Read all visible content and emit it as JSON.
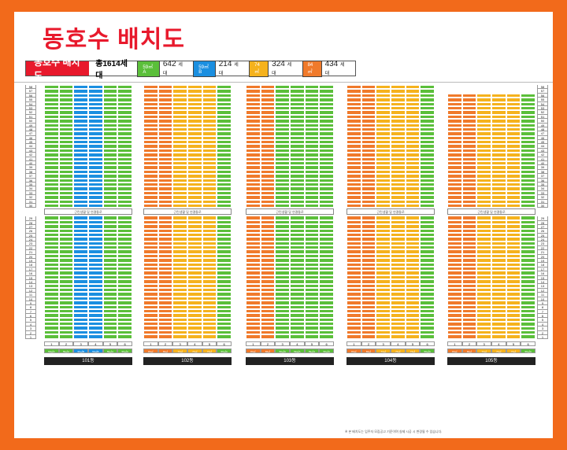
{
  "page": {
    "title": "동호수 배치도"
  },
  "legend": {
    "label": "동호수 배치도",
    "total": "총1614세대",
    "types": [
      {
        "name": "59㎡A",
        "count": "642",
        "unit": "세대",
        "color": "#5bbf3a"
      },
      {
        "name": "59㎡B",
        "count": "214",
        "unit": "세대",
        "color": "#1b8fe0"
      },
      {
        "name": "74㎡",
        "count": "324",
        "unit": "세대",
        "color": "#f5b21d"
      },
      {
        "name": "84㎡",
        "count": "434",
        "unit": "세대",
        "color": "#f07a2b"
      }
    ]
  },
  "buildings": [
    {
      "name": "101동",
      "lines": [
        "59㎡A",
        "59㎡A",
        "59㎡B",
        "59㎡B",
        "59㎡A",
        "59㎡A"
      ],
      "top": 58,
      "mid": "근린생활 및 연결통로"
    },
    {
      "name": "102동",
      "lines": [
        "84㎡",
        "84㎡",
        "74㎡",
        "74㎡",
        "74㎡",
        "59㎡A"
      ],
      "top": 58,
      "mid": "근린생활 및 연결통로"
    },
    {
      "name": "103동",
      "lines": [
        "84㎡",
        "84㎡",
        "59㎡A",
        "59㎡A",
        "59㎡A",
        "59㎡A"
      ],
      "top": 58,
      "mid": "근린생활 및 연결통로"
    },
    {
      "name": "104동",
      "lines": [
        "84㎡",
        "84㎡",
        "74㎡",
        "74㎡",
        "74㎡",
        "59㎡A"
      ],
      "top": 58,
      "mid": "근린생활 및 연결통로"
    },
    {
      "name": "105동",
      "lines": [
        "84㎡",
        "84㎡",
        "74㎡",
        "74㎡",
        "74㎡",
        "59㎡A"
      ],
      "top": 56,
      "mid": "근린생활 및 연결통로"
    }
  ],
  "floors_top": [
    "58",
    "57",
    "56",
    "55",
    "54",
    "53",
    "52",
    "51",
    "50",
    "49",
    "48",
    "47",
    "46",
    "45",
    "44",
    "43",
    "42",
    "41",
    "40",
    "39",
    "38",
    "37",
    "36",
    "35",
    "34",
    "33",
    "32",
    "31",
    "30"
  ],
  "floors_bottom": [
    "29",
    "28",
    "27",
    "26",
    "25",
    "24",
    "23",
    "22",
    "21",
    "20",
    "19",
    "18",
    "17",
    "16",
    "15",
    "14",
    "13",
    "12",
    "11",
    "10",
    "9",
    "8",
    "7",
    "6",
    "5",
    "4",
    "3",
    "2",
    "1"
  ],
  "line_numbers": [
    "1",
    "2",
    "3",
    "4",
    "5",
    "6"
  ],
  "footnote": "※ 본 배치도는 입주자 모집공고 기준이며 실제 시공 시 변경될 수 있습니다."
}
